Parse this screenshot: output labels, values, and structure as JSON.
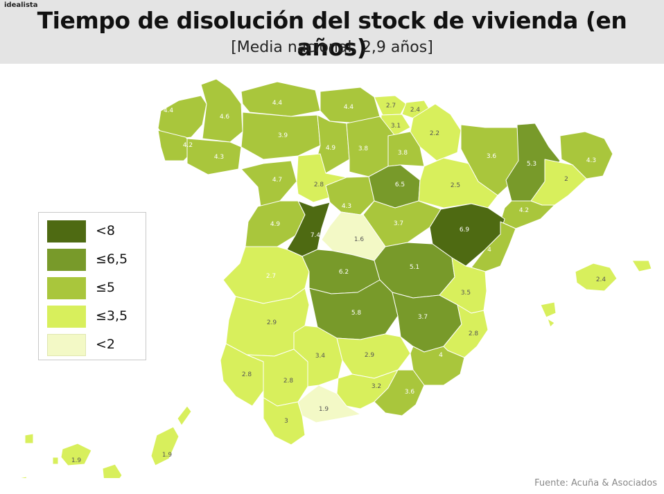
{
  "brand": "idealista",
  "title": "Tiempo de disolución del stock de vivienda (en años)",
  "subtitle": "[Media nacional: 2,9 años]",
  "source": "Fuente: Acuña & Asociados",
  "colors": {
    "lt8": "#4e6a12",
    "le65": "#789a2a",
    "le5": "#a9c63c",
    "le35": "#d8ef5c",
    "lt2": "#f3f9c6",
    "border": "#ffffff",
    "background": "#ffffff"
  },
  "legend": [
    {
      "label": "<8",
      "color": "#4e6a12"
    },
    {
      "label": "≤6,5",
      "color": "#789a2a"
    },
    {
      "label": "≤5",
      "color": "#a9c63c"
    },
    {
      "label": "≤3,5",
      "color": "#d8ef5c"
    },
    {
      "label": "<2",
      "color": "#f3f9c6"
    }
  ],
  "provinces": [
    {
      "value": "4.4"
    },
    {
      "value": "4.4"
    },
    {
      "value": "4.4"
    },
    {
      "value": "2.7"
    },
    {
      "value": "2.4"
    },
    {
      "value": "4.6"
    },
    {
      "value": "3.9"
    },
    {
      "value": "3.1"
    },
    {
      "value": "2.2"
    },
    {
      "value": "4.2"
    },
    {
      "value": "4.3"
    },
    {
      "value": "4.9"
    },
    {
      "value": "3.8"
    },
    {
      "value": "3.8"
    },
    {
      "value": "3.6"
    },
    {
      "value": "5.3"
    },
    {
      "value": "4.3"
    },
    {
      "value": "4.7"
    },
    {
      "value": "2.8"
    },
    {
      "value": "6.5"
    },
    {
      "value": "2.5"
    },
    {
      "value": "2"
    },
    {
      "value": "4.3"
    },
    {
      "value": "4.2"
    },
    {
      "value": "4.9"
    },
    {
      "value": "3.7"
    },
    {
      "value": "7.4"
    },
    {
      "value": "1.6"
    },
    {
      "value": "6.9"
    },
    {
      "value": "4"
    },
    {
      "value": "2.7"
    },
    {
      "value": "6.2"
    },
    {
      "value": "5.1"
    },
    {
      "value": "2.4"
    },
    {
      "value": "3.5"
    },
    {
      "value": "2.9"
    },
    {
      "value": "5.8"
    },
    {
      "value": "3.7"
    },
    {
      "value": "2.8"
    },
    {
      "value": "3.4"
    },
    {
      "value": "2.9"
    },
    {
      "value": "4"
    },
    {
      "value": "2.8"
    },
    {
      "value": "2.8"
    },
    {
      "value": "3.2"
    },
    {
      "value": "3.6"
    },
    {
      "value": "1.9"
    },
    {
      "value": "3"
    },
    {
      "value": "1.9"
    },
    {
      "value": "1.9"
    }
  ]
}
